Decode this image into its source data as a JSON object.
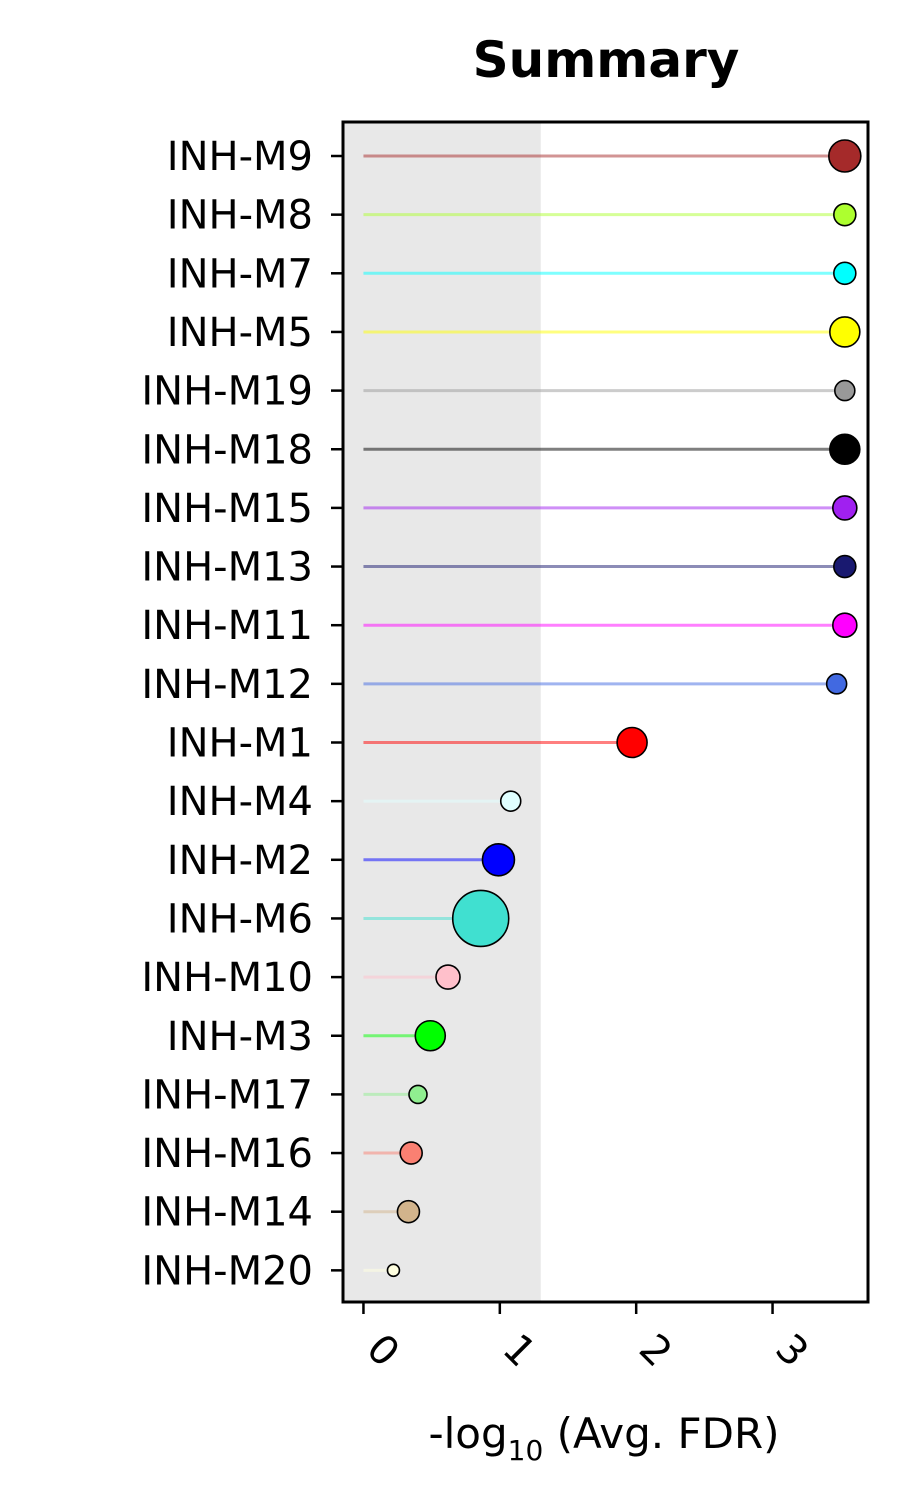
{
  "chart_data": {
    "type": "lollipop",
    "title": "Summary",
    "xlabel_parts": {
      "pre": "-log",
      "sub": "10",
      "post": " (Avg. FDR)"
    },
    "xlim": [
      -0.15,
      3.7
    ],
    "xticks": [
      0,
      1,
      2,
      3
    ],
    "xtick_labels": [
      "0",
      "1",
      "2",
      "3"
    ],
    "xtick_rotation": 45,
    "significance_threshold": 1.3,
    "shaded_region": [
      -0.15,
      1.3
    ],
    "shade_color": "#e8e8e8",
    "categories": [
      "INH-M9",
      "INH-M8",
      "INH-M7",
      "INH-M5",
      "INH-M19",
      "INH-M18",
      "INH-M15",
      "INH-M13",
      "INH-M11",
      "INH-M12",
      "INH-M1",
      "INH-M4",
      "INH-M2",
      "INH-M6",
      "INH-M10",
      "INH-M3",
      "INH-M17",
      "INH-M16",
      "INH-M14",
      "INH-M20"
    ],
    "values": [
      3.53,
      3.53,
      3.53,
      3.53,
      3.53,
      3.53,
      3.53,
      3.53,
      3.53,
      3.47,
      1.97,
      1.08,
      0.99,
      0.86,
      0.62,
      0.49,
      0.4,
      0.35,
      0.33,
      0.22
    ],
    "sizes": [
      16,
      11,
      11,
      15,
      10,
      15,
      12,
      11,
      12,
      10,
      15,
      10,
      16,
      28,
      12,
      15,
      9,
      11,
      11,
      6
    ],
    "colors": [
      "#a52a2a",
      "#adff2f",
      "#00ffff",
      "#ffff00",
      "#999999",
      "#000000",
      "#a020f0",
      "#191970",
      "#ff00ff",
      "#4169e1",
      "#ff0000",
      "#e0ffff",
      "#0000ff",
      "#40e0d0",
      "#ffc0cb",
      "#00ff00",
      "#90ee90",
      "#fa8072",
      "#d2b48c",
      "#ffffe0"
    ]
  }
}
